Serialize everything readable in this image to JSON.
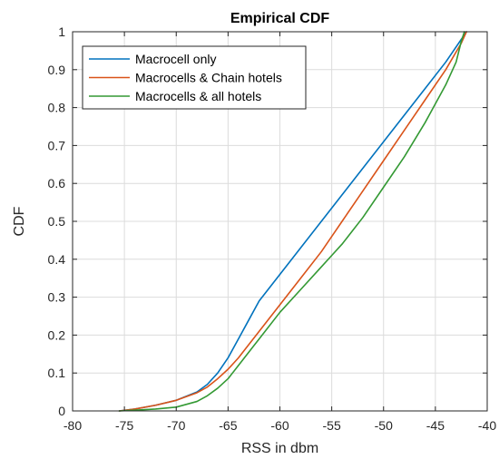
{
  "chart_data": {
    "type": "line",
    "title": "Empirical CDF",
    "xlabel": "RSS in dbm",
    "ylabel": "CDF",
    "xlim": [
      -80,
      -40
    ],
    "ylim": [
      0,
      1
    ],
    "xticks": [
      -80,
      -75,
      -70,
      -65,
      -60,
      -55,
      -50,
      -45,
      -40
    ],
    "yticks": [
      0,
      0.1,
      0.2,
      0.3,
      0.4,
      0.5,
      0.6,
      0.7,
      0.8,
      0.9,
      1
    ],
    "xtick_labels": [
      "-80",
      "-75",
      "-70",
      "-65",
      "-60",
      "-55",
      "-50",
      "-45",
      "-40"
    ],
    "ytick_labels": [
      "0",
      "0.1",
      "0.2",
      "0.3",
      "0.4",
      "0.5",
      "0.6",
      "0.7",
      "0.8",
      "0.9",
      "1"
    ],
    "grid": true,
    "legend_position": "top-left",
    "series": [
      {
        "name": "Macrocell only",
        "color": "#0072BD",
        "x": [
          -75.5,
          -74,
          -72,
          -70,
          -68,
          -67,
          -66,
          -65,
          -64,
          -63,
          -62,
          -60,
          -58,
          -56,
          -55,
          -54,
          -52,
          -50,
          -48,
          -46,
          -44,
          -42.5,
          -42
        ],
        "y": [
          0,
          0.005,
          0.015,
          0.028,
          0.05,
          0.07,
          0.1,
          0.14,
          0.19,
          0.24,
          0.29,
          0.36,
          0.43,
          0.5,
          0.535,
          0.57,
          0.64,
          0.71,
          0.78,
          0.85,
          0.92,
          0.98,
          1
        ]
      },
      {
        "name": "Macrocells & Chain hotels",
        "color": "#D95319",
        "x": [
          -75.5,
          -74,
          -72,
          -70,
          -68,
          -67,
          -66,
          -65,
          -64,
          -62,
          -60,
          -58,
          -56,
          -55,
          -54,
          -52,
          -50,
          -48,
          -46,
          -44,
          -42.5,
          -42
        ],
        "y": [
          0,
          0.005,
          0.015,
          0.028,
          0.048,
          0.063,
          0.085,
          0.11,
          0.14,
          0.21,
          0.28,
          0.35,
          0.42,
          0.46,
          0.5,
          0.58,
          0.66,
          0.74,
          0.82,
          0.9,
          0.97,
          1
        ]
      },
      {
        "name": "Macrocells & all hotels",
        "color": "#339933",
        "x": [
          -75.5,
          -74,
          -72,
          -70,
          -68,
          -67,
          -66,
          -65,
          -64,
          -62,
          -60,
          -58,
          -56,
          -55,
          -54,
          -52,
          -50,
          -48,
          -46,
          -44,
          -43,
          -42.5,
          -42.2
        ],
        "y": [
          0,
          0.002,
          0.005,
          0.01,
          0.025,
          0.04,
          0.06,
          0.085,
          0.12,
          0.19,
          0.26,
          0.32,
          0.38,
          0.41,
          0.44,
          0.51,
          0.59,
          0.67,
          0.76,
          0.86,
          0.92,
          0.975,
          1
        ]
      }
    ]
  }
}
